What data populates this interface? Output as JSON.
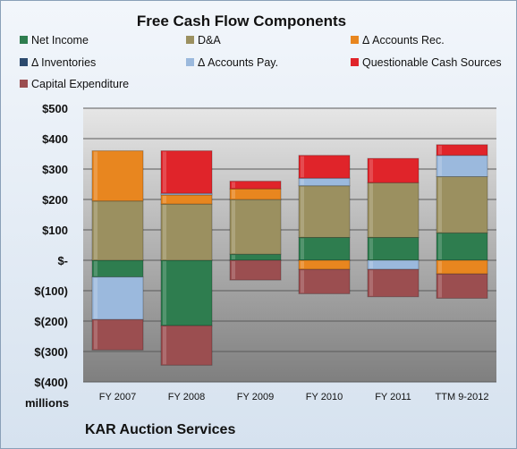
{
  "chart_data": {
    "type": "bar",
    "stacked": true,
    "title": "Free Cash Flow Components",
    "categories": [
      "FY 2007",
      "FY 2008",
      "FY 2009",
      "FY 2010",
      "FY 2011",
      "TTM 9-2012"
    ],
    "ylim": [
      -400,
      500
    ],
    "yticks": [
      500,
      400,
      300,
      200,
      100,
      0,
      -100,
      -200,
      -300,
      -400
    ],
    "ytick_labels": [
      "$500",
      "$400",
      "$300",
      "$200",
      "$100",
      "$-",
      "$(100)",
      "$(200)",
      "$(300)",
      "$(400)"
    ],
    "yunits": "millions",
    "grid": true,
    "legend_position": "top",
    "series": [
      {
        "name": "Net Income",
        "color": "#2e7d4f",
        "values": [
          -55,
          -215,
          20,
          75,
          75,
          90
        ]
      },
      {
        "name": "D&A",
        "color": "#9b9060",
        "values": [
          195,
          185,
          180,
          170,
          180,
          185
        ]
      },
      {
        "name": "Δ Accounts Rec.",
        "color": "#e8861f",
        "values": [
          165,
          30,
          35,
          -30,
          0,
          -45
        ]
      },
      {
        "name": "Δ Inventories",
        "color": "#2c4a6e",
        "values": [
          0,
          0,
          0,
          0,
          0,
          0
        ]
      },
      {
        "name": "Δ Accounts Pay.",
        "color": "#9bb9dd",
        "values": [
          -140,
          5,
          0,
          25,
          -30,
          70
        ]
      },
      {
        "name": "Questionable Cash Sources",
        "color": "#e0242a",
        "values": [
          0,
          140,
          25,
          75,
          80,
          35
        ]
      },
      {
        "name": "Capital Expenditure",
        "color": "#9b4e50",
        "values": [
          -100,
          -130,
          -65,
          -80,
          -90,
          -80
        ]
      }
    ]
  },
  "footer": {
    "company": "KAR Auction Services"
  }
}
